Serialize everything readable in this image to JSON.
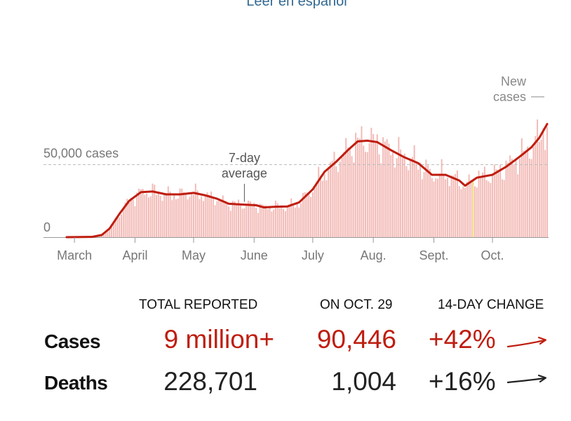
{
  "header": {
    "language_link": "Leer en español"
  },
  "chart_data": {
    "type": "bar",
    "title": "",
    "xlabel": "",
    "ylabel": "",
    "ylim": [
      0,
      103000
    ],
    "grid": "dashed reference line at 50,000",
    "y_ticks": [
      {
        "value": 0,
        "label": "0"
      },
      {
        "value": 50000,
        "label": "50,000 cases"
      }
    ],
    "x_ticks": [
      "March",
      "April",
      "May",
      "June",
      "July",
      "Aug.",
      "Sept.",
      "Oct."
    ],
    "x_range": [
      "2020-02-26",
      "2020-10-29"
    ],
    "x_tick_dates": [
      "2020-03-01",
      "2020-04-01",
      "2020-05-01",
      "2020-06-01",
      "2020-07-01",
      "2020-08-01",
      "2020-09-01",
      "2020-10-01"
    ],
    "annotations": [
      {
        "text": "7-day average",
        "lines": [
          "7-day",
          "average"
        ],
        "date": "2020-05-27"
      },
      {
        "text": "New cases",
        "lines": [
          "New",
          "cases"
        ],
        "date": "2020-10-29"
      }
    ],
    "colors": {
      "bars": "#f2b9b5",
      "highlight_bar": "#f3d37a",
      "line": "#bf1d0f",
      "grid": "#bbbbbb"
    },
    "series": [
      {
        "name": "New cases",
        "kind": "bars",
        "start_date": "2020-02-26",
        "values": []
      },
      {
        "name": "7-day average",
        "kind": "line",
        "points": [
          [
            "2020-02-26",
            0
          ],
          [
            "2020-03-10",
            200
          ],
          [
            "2020-03-15",
            1500
          ],
          [
            "2020-03-19",
            6000
          ],
          [
            "2020-03-24",
            16000
          ],
          [
            "2020-03-29",
            25000
          ],
          [
            "2020-04-04",
            31000
          ],
          [
            "2020-04-10",
            31500
          ],
          [
            "2020-04-17",
            29500
          ],
          [
            "2020-04-24",
            29500
          ],
          [
            "2020-05-01",
            30500
          ],
          [
            "2020-05-07",
            28800
          ],
          [
            "2020-05-13",
            26500
          ],
          [
            "2020-05-19",
            23000
          ],
          [
            "2020-05-26",
            22500
          ],
          [
            "2020-06-02",
            22000
          ],
          [
            "2020-06-06",
            20500
          ],
          [
            "2020-06-12",
            21000
          ],
          [
            "2020-06-18",
            21200
          ],
          [
            "2020-06-24",
            24000
          ],
          [
            "2020-07-01",
            33000
          ],
          [
            "2020-07-07",
            45000
          ],
          [
            "2020-07-13",
            52000
          ],
          [
            "2020-07-19",
            60000
          ],
          [
            "2020-07-24",
            66000
          ],
          [
            "2020-07-29",
            66500
          ],
          [
            "2020-08-03",
            65500
          ],
          [
            "2020-08-10",
            60000
          ],
          [
            "2020-08-17",
            55000
          ],
          [
            "2020-08-24",
            51000
          ],
          [
            "2020-08-31",
            43000
          ],
          [
            "2020-09-07",
            43000
          ],
          [
            "2020-09-14",
            39000
          ],
          [
            "2020-09-17",
            35500
          ],
          [
            "2020-09-23",
            41000
          ],
          [
            "2020-10-01",
            43000
          ],
          [
            "2020-10-08",
            48500
          ],
          [
            "2020-10-15",
            55500
          ],
          [
            "2020-10-21",
            62000
          ],
          [
            "2020-10-25",
            68500
          ],
          [
            "2020-10-29",
            78000
          ]
        ]
      }
    ]
  },
  "summary": {
    "headers": {
      "total": "TOTAL REPORTED",
      "day": "ON OCT. 29",
      "change": "14-DAY CHANGE"
    },
    "rows": [
      {
        "label": "Cases",
        "total": "9 million+",
        "day": "90,446",
        "change": "+42%",
        "color": "#bf1d0f"
      },
      {
        "label": "Deaths",
        "total": "228,701",
        "day": "1,004",
        "change": "+16%",
        "color": "#222222"
      }
    ]
  }
}
